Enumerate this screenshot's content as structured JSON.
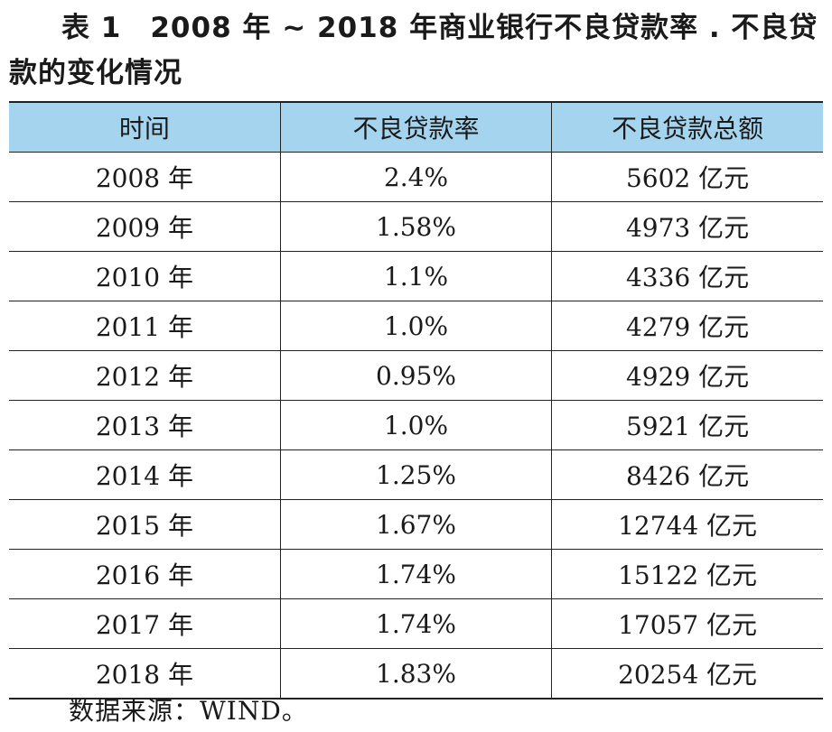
{
  "caption": {
    "line1": "表 1　2008 年 ~ 2018 年商业银行不良贷款率 . 不良贷",
    "line2": "款的变化情况"
  },
  "table": {
    "headers": [
      "时间",
      "不良贷款率",
      "不良贷款总额"
    ],
    "rows": [
      [
        "2008 年",
        "2.4%",
        "5602 亿元"
      ],
      [
        "2009 年",
        "1.58%",
        "4973 亿元"
      ],
      [
        "2010 年",
        "1.1%",
        "4336 亿元"
      ],
      [
        "2011 年",
        "1.0%",
        "4279 亿元"
      ],
      [
        "2012 年",
        "0.95%",
        "4929 亿元"
      ],
      [
        "2013 年",
        "1.0%",
        "5921 亿元"
      ],
      [
        "2014 年",
        "1.25%",
        "8426 亿元"
      ],
      [
        "2015 年",
        "1.67%",
        "12744 亿元"
      ],
      [
        "2016 年",
        "1.74%",
        "15122 亿元"
      ],
      [
        "2017 年",
        "1.74%",
        "17057 亿元"
      ],
      [
        "2018 年",
        "1.83%",
        "20254 亿元"
      ]
    ]
  },
  "source": "数据来源：WIND。",
  "colors": {
    "header_background": "#a5d4ef",
    "border": "#222222",
    "text": "#1a1a1a"
  }
}
